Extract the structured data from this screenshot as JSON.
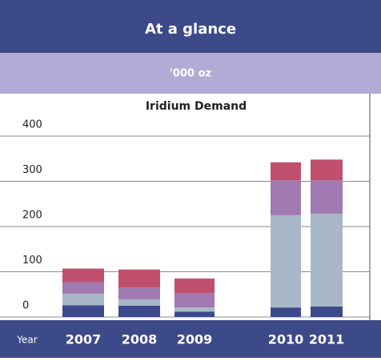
{
  "header": {
    "title": "At a glance",
    "subtitle": "'000 oz"
  },
  "chart_data": {
    "type": "stacked_bar",
    "title": "Iridium Demand",
    "x_label": "Year",
    "categories": [
      "2007",
      "2008",
      "2009",
      "2010",
      "2011"
    ],
    "series": [
      {
        "color": "#3b4a8a",
        "values": [
          26,
          25,
          12,
          21,
          23
        ]
      },
      {
        "color": "#a9b8c8",
        "values": [
          25,
          14,
          9,
          204,
          205
        ]
      },
      {
        "color": "#a07ab0",
        "values": [
          26,
          26,
          32,
          77,
          74
        ]
      },
      {
        "color": "#c0506e",
        "values": [
          30,
          40,
          32,
          40,
          46
        ]
      }
    ],
    "ylim": [
      0,
      400
    ],
    "yticks": [
      0,
      100,
      200,
      300,
      400
    ],
    "grid": true
  }
}
